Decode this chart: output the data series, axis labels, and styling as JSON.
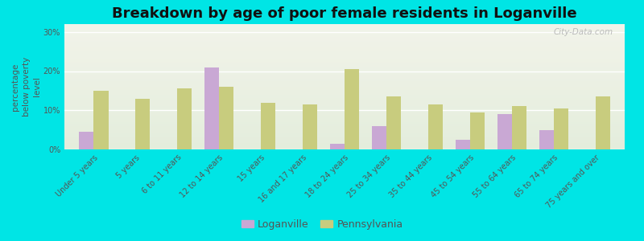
{
  "title": "Breakdown by age of poor female residents in Loganville",
  "ylabel": "percentage\nbelow poverty\nlevel",
  "categories": [
    "Under 5 years",
    "5 years",
    "6 to 11 years",
    "12 to 14 years",
    "15 years",
    "16 and 17 years",
    "18 to 24 years",
    "25 to 34 years",
    "35 to 44 years",
    "45 to 54 years",
    "55 to 64 years",
    "65 to 74 years",
    "75 years and over"
  ],
  "loganville": [
    4.5,
    0,
    0,
    21,
    0,
    0,
    1.5,
    6,
    0,
    2.5,
    9,
    5,
    0
  ],
  "pennsylvania": [
    15,
    13,
    15.5,
    16,
    12,
    11.5,
    20.5,
    13.5,
    11.5,
    9.5,
    11,
    10.5,
    13.5
  ],
  "loganville_color": "#c9a8d4",
  "pennsylvania_color": "#c8cc7e",
  "bg_outer": "#00e5e5",
  "plot_bg": "#eef2e4",
  "ylim": [
    0,
    32
  ],
  "yticks": [
    0,
    10,
    20,
    30
  ],
  "ytick_labels": [
    "0%",
    "10%",
    "20%",
    "30%"
  ],
  "bar_width": 0.35,
  "legend_labels": [
    "Loganville",
    "Pennsylvania"
  ],
  "title_fontsize": 13,
  "axis_label_fontsize": 7.5,
  "tick_fontsize": 7
}
